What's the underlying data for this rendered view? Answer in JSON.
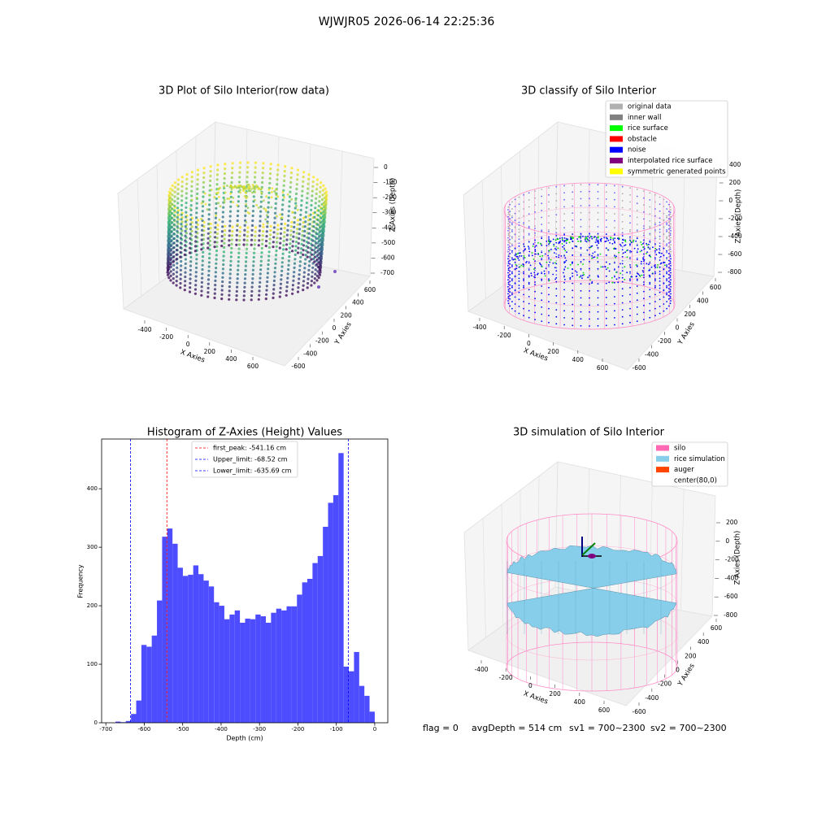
{
  "title": "WJWJR05 2026-06-14 22:25:36",
  "chart_data": [
    {
      "type": "scatter3d",
      "title": "3D Plot of Silo Interior(row data)",
      "xlabel": "X Axies",
      "ylabel": "Y Axies",
      "zlabel": "Z Axies (Depth)",
      "xticks": [
        -400,
        -200,
        0,
        200,
        400,
        600
      ],
      "yticks": [
        -600,
        -400,
        -200,
        0,
        200,
        400,
        600
      ],
      "zticks": [
        0,
        -100,
        -200,
        -300,
        -400,
        -500,
        -600,
        -700
      ]
    },
    {
      "type": "scatter3d",
      "title": "3D classify of Silo Interior",
      "xlabel": "X Axies",
      "ylabel": "Y Axies",
      "zlabel": "Z Axies (Depth)",
      "xticks": [
        -400,
        -200,
        0,
        200,
        400,
        600
      ],
      "yticks": [
        -600,
        -400,
        -200,
        0,
        200,
        400,
        600
      ],
      "zticks": [
        400,
        200,
        0,
        -200,
        -400,
        -600,
        -800
      ],
      "legend": [
        {
          "name": "original data",
          "color": "#b0b0b0"
        },
        {
          "name": "inner wall",
          "color": "#808080"
        },
        {
          "name": "rice surface",
          "color": "#00ff00"
        },
        {
          "name": "obstacle",
          "color": "#ff0000"
        },
        {
          "name": "noise",
          "color": "#0000ff"
        },
        {
          "name": "interpolated rice surface",
          "color": "#800080"
        },
        {
          "name": "symmetric generated points",
          "color": "#ffff00"
        }
      ]
    },
    {
      "type": "histogram",
      "title": "Histogram of Z-Axies (Height) Values",
      "xlabel": "Depth (cm)",
      "ylabel": "Frequency",
      "color": "#4d4dff",
      "bins": [
        -675,
        -661.5,
        -648,
        -634.5,
        -621,
        -607.5,
        -594,
        -580.5,
        -567,
        -553.5,
        -540,
        -526.5,
        -513,
        -499.5,
        -486,
        -472.5,
        -459,
        -445.5,
        -432,
        -418.5,
        -405,
        -391.5,
        -378,
        -364.5,
        -351,
        -337.5,
        -324,
        -310.5,
        -297,
        -283.5,
        -270,
        -256.5,
        -243,
        -229.5,
        -216,
        -202.5,
        -189,
        -175.5,
        -162,
        -148.5,
        -135,
        -121.5,
        -108,
        -94.5,
        -81,
        -67.5,
        -54,
        -40.5,
        -27,
        -13.5,
        0
      ],
      "values": [
        2,
        1,
        3,
        15,
        38,
        133,
        130,
        149,
        209,
        318,
        332,
        306,
        265,
        251,
        253,
        269,
        254,
        243,
        233,
        206,
        200,
        177,
        185,
        192,
        171,
        178,
        177,
        185,
        182,
        171,
        188,
        195,
        192,
        199,
        199,
        219,
        240,
        246,
        273,
        285,
        335,
        376,
        389,
        461,
        96,
        88,
        121,
        63,
        46,
        19
      ],
      "xlim": [
        -711,
        34
      ],
      "ylim": [
        0,
        485
      ],
      "xticks": [
        -700,
        -600,
        -500,
        -400,
        -300,
        -200,
        -100,
        0
      ],
      "yticks": [
        0,
        100,
        200,
        300,
        400
      ],
      "lines": [
        {
          "label": "first_peak: -541.16 cm",
          "value": -541.16,
          "color": "#ff0000"
        },
        {
          "label": "Upper_limit: -68.52 cm",
          "value": -68.52,
          "color": "#0000ff"
        },
        {
          "label": "Lower_limit: -635.69 cm",
          "value": -635.69,
          "color": "#0000ff"
        }
      ]
    },
    {
      "type": "surface3d",
      "title": "3D simulation of Silo Interior",
      "xlabel": "X Axies",
      "ylabel": "Y Axies",
      "zlabel": "Z Axies (Depth)",
      "xticks": [
        -400,
        -200,
        0,
        200,
        400,
        600
      ],
      "yticks": [
        -600,
        -400,
        -200,
        0,
        200,
        400,
        600
      ],
      "zticks": [
        200,
        0,
        -200,
        -400,
        -600,
        -800
      ],
      "legend": [
        {
          "name": "silo",
          "color": "#ff69b4"
        },
        {
          "name": "rice simulation",
          "color": "#87ceeb"
        },
        {
          "name": "auger",
          "color": "#ff4500"
        },
        {
          "name": "center(80,0)",
          "color": "#ffffff"
        }
      ]
    }
  ],
  "footer": [
    "flag = 0",
    "avgDepth = 514 cm",
    "sv1 = 700~2300",
    "sv2 = 700~2300"
  ]
}
